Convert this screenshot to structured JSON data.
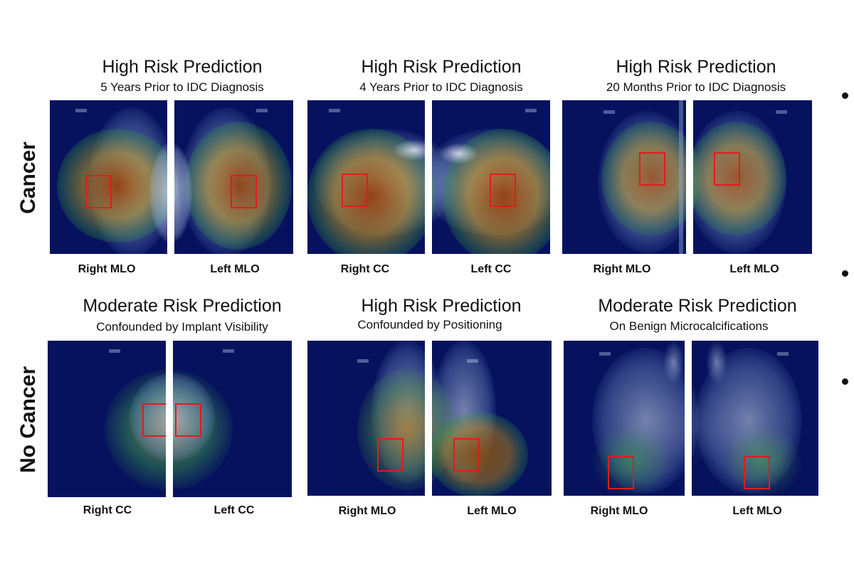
{
  "rows": [
    {
      "label": "Cancer"
    },
    {
      "label": "No Cancer"
    }
  ],
  "panels": [
    {
      "title": "High Risk Prediction",
      "subtitle": "5 Years Prior to IDC Diagnosis",
      "views": [
        "Right MLO",
        "Left MLO"
      ]
    },
    {
      "title": "High Risk Prediction",
      "subtitle": "4 Years Prior to IDC Diagnosis",
      "views": [
        "Right CC",
        "Left CC"
      ]
    },
    {
      "title": "High Risk Prediction",
      "subtitle": "20 Months Prior to IDC Diagnosis",
      "views": [
        "Right MLO",
        "Left MLO"
      ]
    },
    {
      "title": "Moderate Risk Prediction",
      "subtitle": "Confounded by Implant Visibility",
      "views": [
        "Right CC",
        "Left CC"
      ]
    },
    {
      "title": "High Risk Prediction",
      "subtitle": "Confounded by Positioning",
      "views": [
        "Right MLO",
        "Left MLO"
      ]
    },
    {
      "title": "Moderate Risk Prediction",
      "subtitle": "On Benign Microcalcifications",
      "views": [
        "Right MLO",
        "Left MLO"
      ]
    }
  ],
  "colors": {
    "background_scan": "#06125e",
    "highlight_box": "#e41a1c",
    "heatmap_hot": "#8a2a00",
    "heatmap_warm": "#c8a21e",
    "heatmap_mid": "#2f9a3a"
  }
}
